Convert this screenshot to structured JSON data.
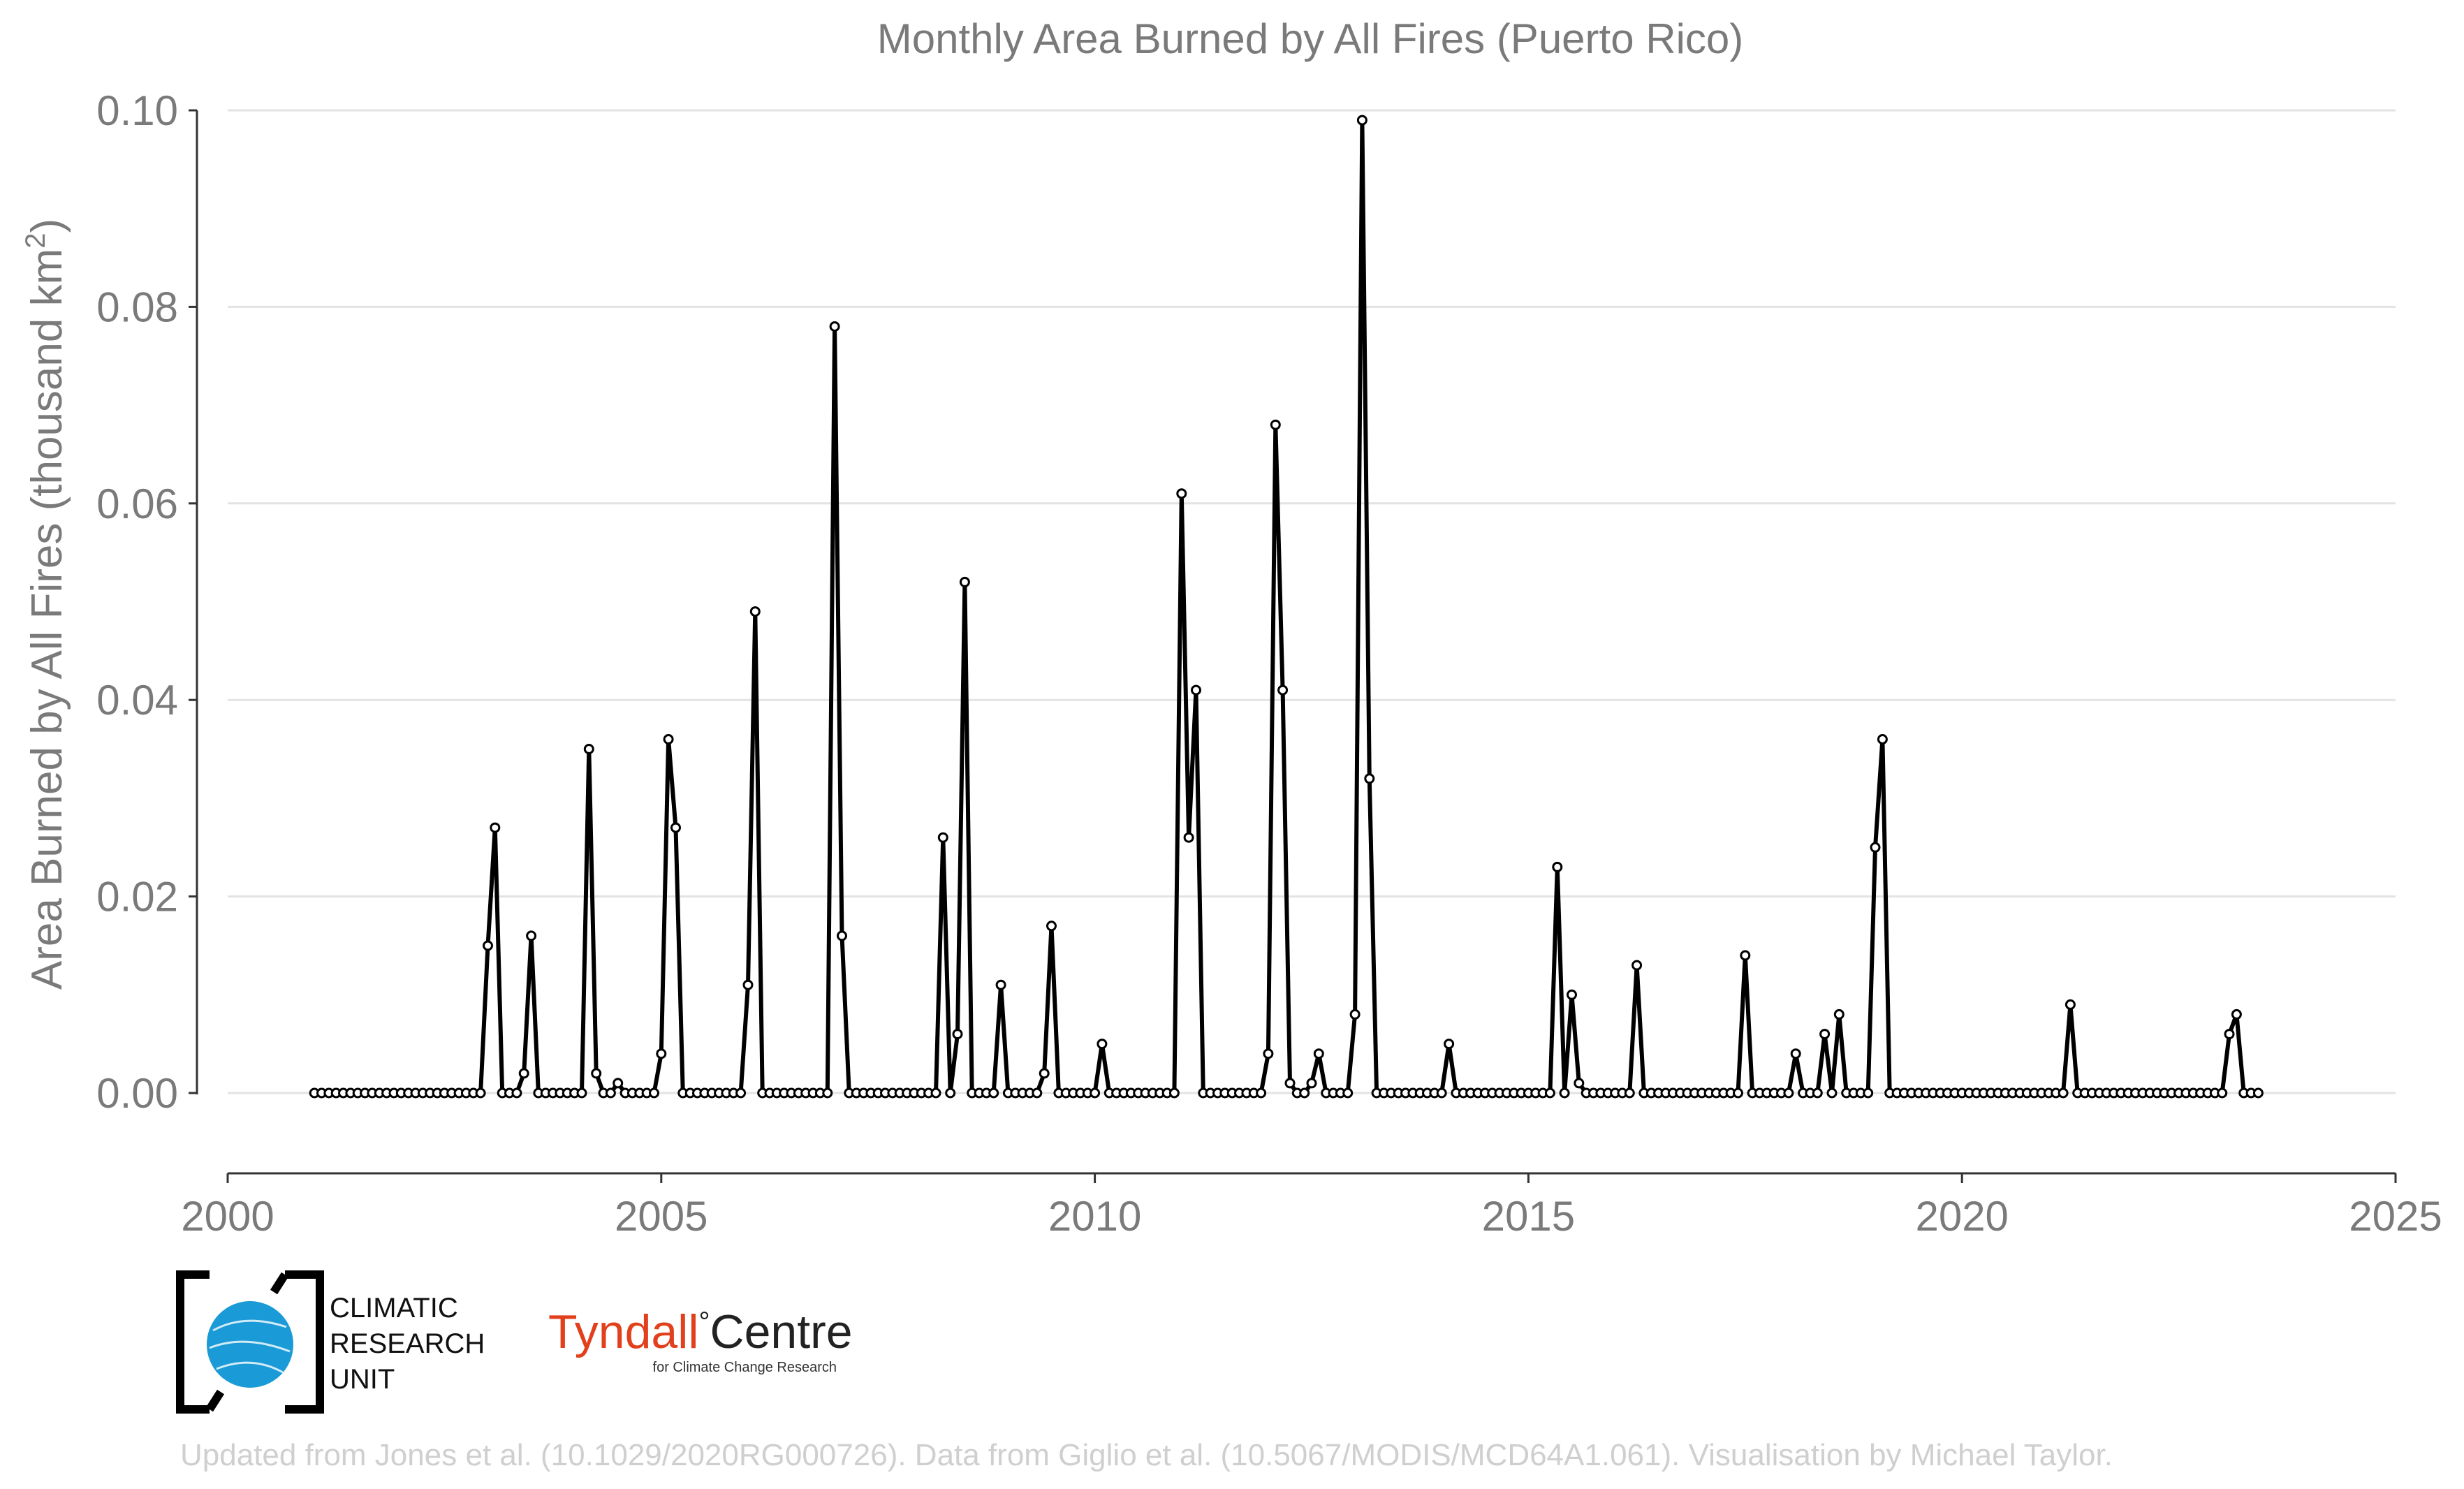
{
  "chart_data": {
    "type": "line",
    "title": "Monthly Area Burned by All Fires (Puerto Rico)",
    "xlabel": "",
    "ylabel": "Area Burned by All Fires (thousand km",
    "ylabel_superscript": "2",
    "ylabel_close": ")",
    "xlim": [
      2000,
      2025
    ],
    "ylim": [
      0,
      0.1
    ],
    "x_ticks": [
      2000,
      2005,
      2010,
      2015,
      2020,
      2025
    ],
    "x_tick_labels": [
      "2000",
      "2005",
      "2010",
      "2015",
      "2020",
      "2025"
    ],
    "y_ticks": [
      0,
      0.02,
      0.04,
      0.06,
      0.08,
      0.1
    ],
    "y_tick_labels": [
      "0.00",
      "0.02",
      "0.04",
      "0.06",
      "0.08",
      "0.10"
    ],
    "grid": "horizontal",
    "line_color": "#000000",
    "marker_fill": "#ffffff",
    "series": [
      {
        "start_year": 2001,
        "start_month": 1,
        "frequency": "monthly",
        "values": [
          0,
          0,
          0,
          0,
          0,
          0,
          0,
          0,
          0,
          0,
          0,
          0,
          0,
          0,
          0,
          0,
          0,
          0,
          0,
          0,
          0,
          0,
          0,
          0,
          0.015,
          0.027,
          0,
          0,
          0,
          0.002,
          0.016,
          0,
          0,
          0,
          0,
          0,
          0,
          0,
          0.035,
          0.002,
          0,
          0,
          0.001,
          0,
          0,
          0,
          0,
          0,
          0.004,
          0.036,
          0.027,
          0,
          0,
          0,
          0,
          0,
          0,
          0,
          0,
          0,
          0.011,
          0.049,
          0,
          0,
          0,
          0,
          0,
          0,
          0,
          0,
          0,
          0,
          0.078,
          0.016,
          0,
          0,
          0,
          0,
          0,
          0,
          0,
          0,
          0,
          0,
          0,
          0,
          0,
          0.026,
          0,
          0.006,
          0.052,
          0,
          0,
          0,
          0,
          0.011,
          0,
          0,
          0,
          0,
          0,
          0.002,
          0.017,
          0,
          0,
          0,
          0,
          0,
          0,
          0.005,
          0,
          0,
          0,
          0,
          0,
          0,
          0,
          0,
          0,
          0,
          0.061,
          0.026,
          0.041,
          0,
          0,
          0,
          0,
          0,
          0,
          0,
          0,
          0,
          0.004,
          0.068,
          0.041,
          0.001,
          0,
          0,
          0.001,
          0.004,
          0,
          0,
          0,
          0,
          0.008,
          0.099,
          0.032,
          0,
          0,
          0,
          0,
          0,
          0,
          0,
          0,
          0,
          0,
          0.005,
          0,
          0,
          0,
          0,
          0,
          0,
          0,
          0,
          0,
          0,
          0,
          0,
          0,
          0,
          0.023,
          0,
          0.01,
          0.001,
          0,
          0,
          0,
          0,
          0,
          0,
          0,
          0.013,
          0,
          0,
          0,
          0,
          0,
          0,
          0,
          0,
          0,
          0,
          0,
          0,
          0,
          0,
          0.014,
          0,
          0,
          0,
          0,
          0,
          0,
          0.004,
          0,
          0,
          0,
          0.006,
          0,
          0.008,
          0,
          0,
          0,
          0,
          0.025,
          0.036,
          0,
          0,
          0,
          0,
          0,
          0,
          0,
          0,
          0,
          0,
          0,
          0,
          0,
          0,
          0,
          0,
          0,
          0,
          0,
          0,
          0,
          0,
          0,
          0,
          0,
          0.009,
          0,
          0,
          0,
          0,
          0,
          0,
          0,
          0,
          0,
          0,
          0,
          0,
          0,
          0,
          0,
          0,
          0,
          0,
          0,
          0,
          0,
          0.006,
          0.008,
          0,
          0,
          0
        ]
      }
    ]
  },
  "logos": {
    "cru_lines": [
      "CLIMATIC",
      "RESEARCH",
      "UNIT"
    ],
    "cru_globe_color": "#1a9ad6",
    "tyndall_word": "Tyndall",
    "tyndall_degree": "°",
    "tyndall_centre": "Centre",
    "tyndall_color": "#e2401c",
    "tyndall_sub": "for Climate Change Research"
  },
  "credit": "Updated from Jones et al. (10.1029/2020RG000726). Data from Giglio et al. (10.5067/MODIS/MCD64A1.061). Visualisation by Michael Taylor."
}
